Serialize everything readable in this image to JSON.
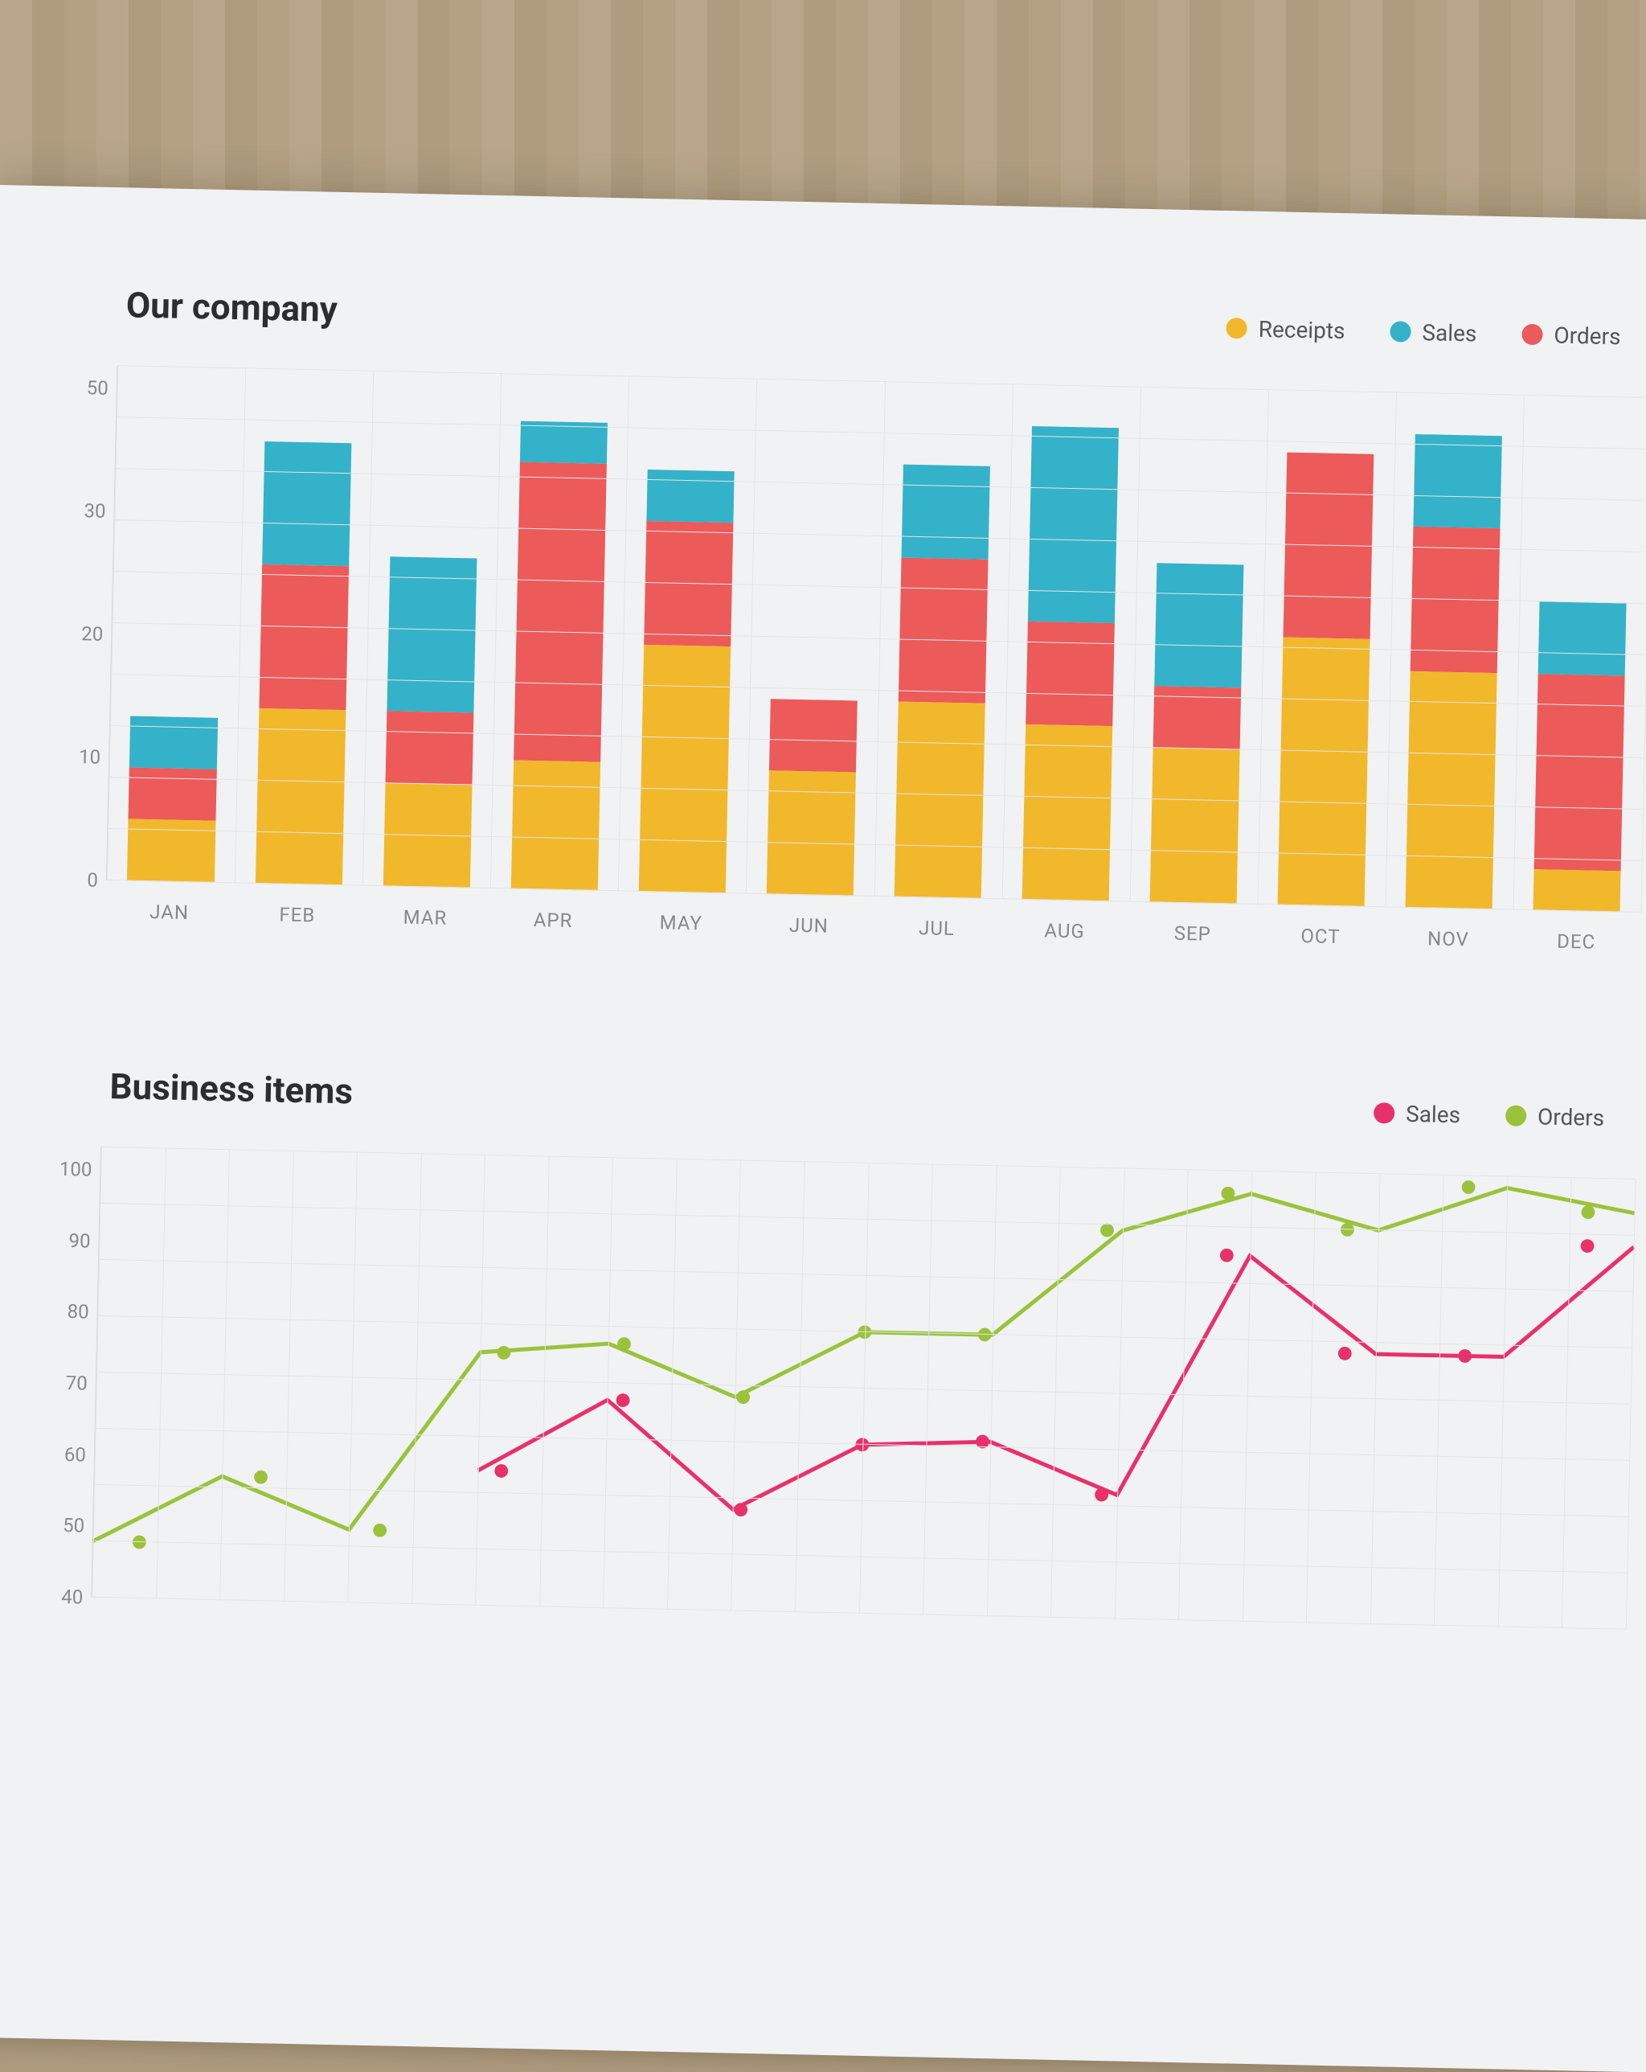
{
  "company_chart": {
    "title": "Our company",
    "type": "stacked-bar",
    "legend": [
      {
        "label": "Receipts",
        "color": "#f2b82b"
      },
      {
        "label": "Sales",
        "color": "#34b2c9"
      },
      {
        "label": "Orders",
        "color": "#ed5a5a"
      }
    ],
    "y_ticks": [
      0,
      10,
      20,
      30,
      50
    ],
    "y_max": 100,
    "categories": [
      "JAN",
      "FEB",
      "MAR",
      "APR",
      "MAY",
      "JUN",
      "JUL",
      "AUG",
      "SEP",
      "OCT",
      "NOV",
      "DEC"
    ],
    "series_order": [
      "receipts",
      "orders",
      "sales"
    ],
    "series_colors": {
      "receipts": "#f2b82b",
      "orders": "#ed5a5a",
      "sales": "#34b2c9"
    },
    "data": {
      "receipts": [
        12,
        34,
        20,
        25,
        48,
        24,
        38,
        34,
        30,
        52,
        46,
        8
      ],
      "orders": [
        10,
        28,
        14,
        58,
        24,
        14,
        28,
        20,
        12,
        36,
        28,
        38
      ],
      "sales": [
        10,
        24,
        30,
        8,
        10,
        0,
        18,
        38,
        24,
        0,
        18,
        14
      ]
    },
    "grid_color": "#e2e4e8",
    "background_color": "#f1f2f4",
    "bar_width_ratio": 0.68,
    "title_fontsize": 44,
    "label_fontsize": 24,
    "label_color": "#888888"
  },
  "business_chart": {
    "title": "Business items",
    "type": "line",
    "legend": [
      {
        "label": "Sales",
        "color": "#e8316a"
      },
      {
        "label": "Orders",
        "color": "#9cc23b"
      }
    ],
    "y_ticks": [
      40,
      50,
      60,
      70,
      80,
      90,
      100
    ],
    "y_min": 30,
    "y_max": 110,
    "x_count": 12,
    "series": {
      "orders": {
        "color": "#9cc23b",
        "line_width": 5,
        "marker_r": 9,
        "values": [
          40,
          52,
          43,
          75,
          77,
          68,
          80,
          80,
          99,
          106,
          100,
          108,
          104
        ]
      },
      "sales": {
        "color": "#e8316a",
        "line_width": 5,
        "marker_r": 9,
        "values": [
          null,
          null,
          null,
          54,
          67,
          48,
          60,
          61,
          52,
          95,
          78,
          78,
          98
        ]
      }
    },
    "grid_color": "#e2e4e8",
    "title_fontsize": 44,
    "label_fontsize": 24,
    "label_color": "#888888"
  }
}
